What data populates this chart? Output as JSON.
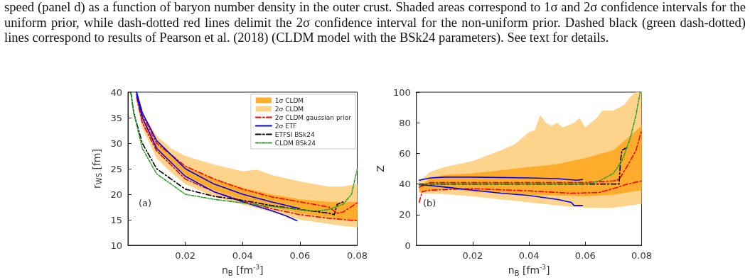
{
  "chart_data": [
    {
      "type": "line",
      "xlabel": "n$_{B}$ [fm$^{-3}$]",
      "ylabel": "r$_{WS}$ [fm]",
      "xlim": [
        0,
        0.08
      ],
      "xticks": [
        0.02,
        0.04,
        0.06,
        0.08
      ],
      "ylim": [
        10,
        40
      ],
      "yticks": [
        10,
        15,
        20,
        25,
        30,
        35,
        40
      ],
      "legend": "top right",
      "annotations": [
        "speed (panel d) as a function of baryon number density in the outer crust. Shaded areas correspond to 1σ and 2σ confidence intervals for the uniform prior, while dash-dotted red lines delimit the 2σ confidence interval for the non-uniform prior. Dashed black (green dash-dotted) lines correspond to results of Pearson et al. (2018) (CLDM model with the BSk24 parameters). See text for details.",
        "(a)"
      ],
      "series": [
        {
          "name": "1σ CLDM",
          "type": "area",
          "color": "#fdad2b",
          "x": [
            0.003,
            0.005,
            0.01,
            0.02,
            0.03,
            0.04,
            0.05,
            0.06,
            0.07,
            0.08
          ],
          "values": [
            null,
            null,
            null,
            null,
            null,
            null,
            null,
            null,
            null,
            null
          ],
          "lower": [
            39,
            34,
            28.5,
            23.5,
            20.8,
            19,
            17.5,
            16.3,
            15.5,
            14.8
          ],
          "upper": [
            40,
            35,
            30,
            25.5,
            23,
            21.3,
            20,
            19,
            18.5,
            18.5
          ]
        },
        {
          "name": "2σ CLDM",
          "type": "area",
          "color": "#fed38b",
          "x": [
            0.003,
            0.005,
            0.01,
            0.015,
            0.02,
            0.03,
            0.04,
            0.045,
            0.05,
            0.06,
            0.07,
            0.075,
            0.08
          ],
          "values": [
            null,
            null,
            null,
            null,
            null,
            null,
            null,
            null,
            null,
            null,
            null,
            null,
            null
          ],
          "lower": [
            38,
            33,
            27,
            24.3,
            22,
            19.5,
            18,
            17.3,
            16.5,
            15,
            14.2,
            13.8,
            13.5
          ],
          "upper": [
            40,
            36,
            31.5,
            29,
            27.5,
            25.8,
            24.5,
            24.8,
            23.8,
            22.5,
            21.5,
            21.5,
            22
          ]
        },
        {
          "name": "2σ CLDM gaussian prior",
          "type": "line",
          "color": "#ff0000",
          "line_style": "dashed",
          "x": [
            0.003,
            0.005,
            0.01,
            0.02,
            0.03,
            0.04,
            0.05,
            0.06,
            0.07,
            0.073,
            0.075,
            0.08
          ],
          "values": [
            40,
            35.5,
            30,
            25.5,
            23,
            21,
            19.5,
            18.5,
            17.5,
            16.3,
            16.5,
            18.3
          ]
        },
        {
          "type": "line",
          "color": "#ff0000",
          "line_style": "dashed",
          "x": [
            0.003,
            0.005,
            0.01,
            0.02,
            0.03,
            0.04,
            0.05,
            0.06,
            0.07,
            0.08
          ],
          "values": [
            39,
            34,
            28.5,
            23,
            20.5,
            18.7,
            17.2,
            16,
            15.3,
            14.8
          ]
        },
        {
          "name": "2σ ETF",
          "type": "line",
          "color": "#0000ff",
          "line_style": "solid",
          "x": [
            0.003,
            0.005,
            0.01,
            0.02,
            0.03,
            0.04,
            0.05,
            0.06
          ],
          "values": [
            40,
            36,
            30.5,
            25,
            22,
            20,
            18.5,
            17.2
          ]
        },
        {
          "type": "line",
          "color": "#0000ff",
          "line_style": "solid",
          "x": [
            0.003,
            0.005,
            0.01,
            0.02,
            0.03,
            0.04,
            0.05,
            0.055,
            0.059
          ],
          "values": [
            39.5,
            35,
            29,
            23.5,
            20.5,
            18.5,
            16.8,
            15.8,
            14.8
          ]
        },
        {
          "name": "ETFSI BSk24",
          "type": "line",
          "color": "#000000",
          "line_style": "dashed",
          "x": [
            0.001,
            0.002,
            0.005,
            0.01,
            0.02,
            0.03,
            0.04,
            0.05,
            0.06,
            0.07,
            0.072,
            0.073,
            0.075
          ],
          "values": [
            40,
            36,
            30,
            25,
            21,
            19.6,
            18.8,
            17.8,
            17,
            16.3,
            16,
            18,
            18.5
          ]
        },
        {
          "name": "CLDM BSk24",
          "type": "line",
          "color": "#2ca02c",
          "line_style": "dotted",
          "x": [
            0.001,
            0.002,
            0.005,
            0.01,
            0.02,
            0.03,
            0.04,
            0.05,
            0.06,
            0.065,
            0.07,
            0.075,
            0.078,
            0.08
          ],
          "values": [
            40,
            36,
            29,
            24,
            20,
            19,
            18.3,
            17.6,
            17,
            16.7,
            17,
            18,
            20,
            25
          ]
        }
      ]
    },
    {
      "type": "line",
      "xlabel": "n$_{B}$ [fm$^{-3}$]",
      "ylabel": "Z",
      "xlim": [
        0,
        0.08
      ],
      "xticks": [
        0.02,
        0.04,
        0.06,
        0.08
      ],
      "ylim": [
        0,
        100
      ],
      "yticks": [
        0,
        20,
        40,
        60,
        80,
        100
      ],
      "annotations": [
        "(b)"
      ],
      "series": [
        {
          "type": "area",
          "color": "#fdad2b",
          "x": [
            0.001,
            0.005,
            0.01,
            0.02,
            0.03,
            0.04,
            0.05,
            0.06,
            0.07,
            0.08
          ],
          "values": [
            null,
            null,
            null,
            null,
            null,
            null,
            null,
            null,
            null,
            null
          ],
          "lower": [
            35,
            36,
            37,
            35,
            34,
            33,
            32.5,
            32,
            33,
            36
          ],
          "upper": [
            38,
            44,
            46,
            47,
            49,
            51,
            53,
            57,
            62,
            78
          ]
        },
        {
          "type": "area",
          "color": "#fed38b",
          "x": [
            0.001,
            0.005,
            0.01,
            0.02,
            0.03,
            0.035,
            0.04,
            0.042,
            0.044,
            0.046,
            0.048,
            0.05,
            0.052,
            0.056,
            0.058,
            0.06,
            0.064,
            0.066,
            0.07,
            0.074,
            0.076,
            0.078,
            0.08
          ],
          "values": [
            null,
            null,
            null,
            null,
            null,
            null,
            null,
            null,
            null,
            null,
            null,
            null,
            null,
            null,
            null,
            null,
            null,
            null,
            null,
            null,
            null,
            null,
            null
          ],
          "lower": [
            34,
            33.8,
            33.5,
            32,
            30,
            29,
            28,
            27.6,
            27.2,
            26.8,
            26.4,
            26,
            25.7,
            25,
            24.8,
            24.5,
            24.5,
            24.5,
            24.5,
            25.5,
            26,
            26.5,
            27
          ],
          "upper": [
            42,
            48,
            51,
            55,
            62,
            66,
            74,
            75,
            85,
            80,
            78,
            80,
            77,
            80,
            83,
            77,
            83,
            88,
            88,
            92,
            97,
            100,
            100
          ]
        },
        {
          "type": "line",
          "color": "#ff0000",
          "line_style": "dashed",
          "x": [
            0.001,
            0.005,
            0.02,
            0.04,
            0.06,
            0.07,
            0.072,
            0.075,
            0.078,
            0.08
          ],
          "values": [
            38,
            41,
            41,
            41,
            41,
            42,
            43,
            52,
            62,
            75
          ]
        },
        {
          "type": "line",
          "color": "#ff0000",
          "line_style": "dashed",
          "x": [
            0.001,
            0.002,
            0.005,
            0.02,
            0.04,
            0.055,
            0.065,
            0.07,
            0.075,
            0.08
          ],
          "values": [
            28,
            35,
            36,
            37,
            35.5,
            34,
            34.5,
            37,
            40,
            42
          ]
        },
        {
          "type": "line",
          "color": "#0000ff",
          "line_style": "solid",
          "x": [
            0.001,
            0.005,
            0.01,
            0.02,
            0.04,
            0.05,
            0.057,
            0.059
          ],
          "values": [
            42.5,
            44,
            44.5,
            44.5,
            44,
            43.5,
            42.5,
            43
          ]
        },
        {
          "type": "line",
          "color": "#0000ff",
          "line_style": "solid",
          "x": [
            0.001,
            0.005,
            0.01,
            0.02,
            0.03,
            0.04,
            0.05,
            0.055,
            0.056,
            0.059
          ],
          "values": [
            39.5,
            39,
            38,
            36,
            34,
            32.5,
            30,
            28,
            26,
            26
          ]
        },
        {
          "type": "line",
          "color": "#000000",
          "line_style": "dashed",
          "x": [
            0.001,
            0.07,
            0.072,
            0.0725,
            0.073,
            0.075
          ],
          "values": [
            40,
            40,
            40,
            55,
            62,
            64
          ]
        },
        {
          "type": "line",
          "color": "#2ca02c",
          "line_style": "dotted",
          "x": [
            0.001,
            0.02,
            0.04,
            0.06,
            0.065,
            0.07,
            0.073,
            0.076,
            0.078,
            0.0795
          ],
          "values": [
            40,
            40,
            40,
            40,
            42,
            47,
            55,
            70,
            85,
            100
          ]
        }
      ]
    }
  ]
}
